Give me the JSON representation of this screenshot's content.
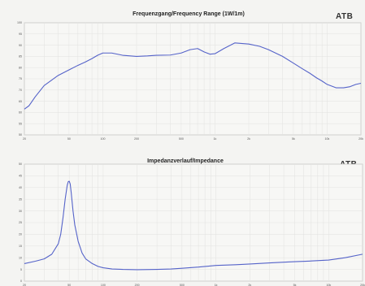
{
  "chart_data": [
    {
      "type": "line",
      "title": "Frequenzgang/Frequency Range (1W/1m)",
      "brand": "ATB",
      "xscale": "log",
      "xlim": [
        20,
        20000
      ],
      "ylim": [
        50,
        100
      ],
      "grid": true,
      "xticks": [
        "20",
        "50",
        "100",
        "200",
        "500",
        "1k",
        "2k",
        "5k",
        "10k",
        "20k"
      ],
      "yticks": [
        "100",
        "95",
        "90",
        "85",
        "80",
        "75",
        "70",
        "65",
        "60",
        "55",
        "50"
      ],
      "series": [
        {
          "color": "#5563c9",
          "x": [
            20,
            22,
            25,
            30,
            40,
            50,
            60,
            70,
            80,
            90,
            100,
            120,
            150,
            200,
            250,
            300,
            400,
            500,
            600,
            700,
            800,
            900,
            1000,
            1200,
            1500,
            2000,
            2500,
            3000,
            4000,
            5000,
            6000,
            7000,
            8000,
            9000,
            10000,
            12000,
            14000,
            16000,
            18000,
            20000
          ],
          "y": [
            61.5,
            63,
            67,
            72,
            76.5,
            79,
            81,
            82.5,
            84,
            85.5,
            86.5,
            86.5,
            85.5,
            85,
            85.2,
            85.5,
            85.6,
            86.5,
            88,
            88.5,
            87,
            86,
            86.2,
            88.5,
            91,
            90.5,
            89.5,
            88,
            85,
            82,
            79.5,
            77.5,
            75.5,
            74,
            72.5,
            71,
            71,
            71.5,
            72.5,
            73
          ]
        }
      ]
    },
    {
      "type": "line",
      "title": "Impedanzverlauf/Impedance",
      "brand": "ATB",
      "xscale": "log",
      "xlim": [
        20,
        20000
      ],
      "ylim": [
        0,
        50
      ],
      "grid": true,
      "xticks": [
        "20",
        "50",
        "100",
        "200",
        "500",
        "1k",
        "2k",
        "5k",
        "10k",
        "20k"
      ],
      "yticks": [
        "50",
        "45",
        "40",
        "35",
        "30",
        "25",
        "20",
        "15",
        "10",
        "5",
        "0"
      ],
      "series": [
        {
          "color": "#5563c9",
          "x": [
            20,
            25,
            30,
            35,
            40,
            42,
            44,
            46,
            48,
            49,
            50,
            51,
            52,
            54,
            56,
            60,
            65,
            70,
            80,
            90,
            100,
            120,
            150,
            200,
            300,
            400,
            500,
            700,
            1000,
            1500,
            2000,
            3000,
            4000,
            5000,
            7000,
            10000,
            14000,
            20000
          ],
          "y": [
            7.5,
            8.5,
            9.5,
            11.5,
            16,
            20,
            27,
            35,
            41,
            42.5,
            42.7,
            41.5,
            38,
            30,
            24,
            17,
            12,
            9.5,
            7.5,
            6.3,
            5.7,
            5.2,
            5,
            4.9,
            5,
            5.2,
            5.5,
            6,
            6.7,
            7,
            7.3,
            7.8,
            8.1,
            8.3,
            8.6,
            9,
            10,
            11.5
          ]
        }
      ]
    }
  ]
}
